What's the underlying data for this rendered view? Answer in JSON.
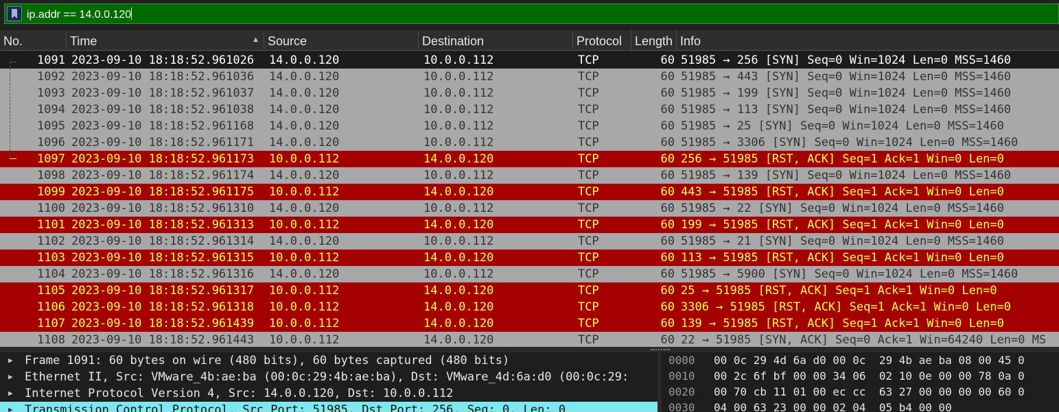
{
  "filter": {
    "text": "ip.addr == 14.0.0.120"
  },
  "columns": {
    "no": "No.",
    "time": "Time",
    "source": "Source",
    "destination": "Destination",
    "protocol": "Protocol",
    "length": "Length",
    "info": "Info"
  },
  "packets": [
    {
      "no": "1091",
      "time": "2023-09-10 18:18:52.961026",
      "src": "14.0.0.120",
      "dst": "10.0.0.112",
      "proto": "TCP",
      "len": "60",
      "info": "51985 → 256 [SYN] Seq=0 Win=1024 Len=0 MSS=1460",
      "kind": "sel"
    },
    {
      "no": "1092",
      "time": "2023-09-10 18:18:52.961036",
      "src": "14.0.0.120",
      "dst": "10.0.0.112",
      "proto": "TCP",
      "len": "60",
      "info": "51985 → 443 [SYN] Seq=0 Win=1024 Len=0 MSS=1460",
      "kind": "syn"
    },
    {
      "no": "1093",
      "time": "2023-09-10 18:18:52.961037",
      "src": "14.0.0.120",
      "dst": "10.0.0.112",
      "proto": "TCP",
      "len": "60",
      "info": "51985 → 199 [SYN] Seq=0 Win=1024 Len=0 MSS=1460",
      "kind": "syn"
    },
    {
      "no": "1094",
      "time": "2023-09-10 18:18:52.961038",
      "src": "14.0.0.120",
      "dst": "10.0.0.112",
      "proto": "TCP",
      "len": "60",
      "info": "51985 → 113 [SYN] Seq=0 Win=1024 Len=0 MSS=1460",
      "kind": "syn"
    },
    {
      "no": "1095",
      "time": "2023-09-10 18:18:52.961168",
      "src": "14.0.0.120",
      "dst": "10.0.0.112",
      "proto": "TCP",
      "len": "60",
      "info": "51985 → 25 [SYN] Seq=0 Win=1024 Len=0 MSS=1460",
      "kind": "syn"
    },
    {
      "no": "1096",
      "time": "2023-09-10 18:18:52.961171",
      "src": "14.0.0.120",
      "dst": "10.0.0.112",
      "proto": "TCP",
      "len": "60",
      "info": "51985 → 3306 [SYN] Seq=0 Win=1024 Len=0 MSS=1460",
      "kind": "syn"
    },
    {
      "no": "1097",
      "time": "2023-09-10 18:18:52.961173",
      "src": "10.0.0.112",
      "dst": "14.0.0.120",
      "proto": "TCP",
      "len": "60",
      "info": "256 → 51985 [RST, ACK] Seq=1 Ack=1 Win=0 Len=0",
      "kind": "rst"
    },
    {
      "no": "1098",
      "time": "2023-09-10 18:18:52.961174",
      "src": "14.0.0.120",
      "dst": "10.0.0.112",
      "proto": "TCP",
      "len": "60",
      "info": "51985 → 139 [SYN] Seq=0 Win=1024 Len=0 MSS=1460",
      "kind": "syn"
    },
    {
      "no": "1099",
      "time": "2023-09-10 18:18:52.961175",
      "src": "10.0.0.112",
      "dst": "14.0.0.120",
      "proto": "TCP",
      "len": "60",
      "info": "443 → 51985 [RST, ACK] Seq=1 Ack=1 Win=0 Len=0",
      "kind": "rst"
    },
    {
      "no": "1100",
      "time": "2023-09-10 18:18:52.961310",
      "src": "14.0.0.120",
      "dst": "10.0.0.112",
      "proto": "TCP",
      "len": "60",
      "info": "51985 → 22 [SYN] Seq=0 Win=1024 Len=0 MSS=1460",
      "kind": "syn"
    },
    {
      "no": "1101",
      "time": "2023-09-10 18:18:52.961313",
      "src": "10.0.0.112",
      "dst": "14.0.0.120",
      "proto": "TCP",
      "len": "60",
      "info": "199 → 51985 [RST, ACK] Seq=1 Ack=1 Win=0 Len=0",
      "kind": "rst"
    },
    {
      "no": "1102",
      "time": "2023-09-10 18:18:52.961314",
      "src": "14.0.0.120",
      "dst": "10.0.0.112",
      "proto": "TCP",
      "len": "60",
      "info": "51985 → 21 [SYN] Seq=0 Win=1024 Len=0 MSS=1460",
      "kind": "syn"
    },
    {
      "no": "1103",
      "time": "2023-09-10 18:18:52.961315",
      "src": "10.0.0.112",
      "dst": "14.0.0.120",
      "proto": "TCP",
      "len": "60",
      "info": "113 → 51985 [RST, ACK] Seq=1 Ack=1 Win=0 Len=0",
      "kind": "rst"
    },
    {
      "no": "1104",
      "time": "2023-09-10 18:18:52.961316",
      "src": "14.0.0.120",
      "dst": "10.0.0.112",
      "proto": "TCP",
      "len": "60",
      "info": "51985 → 5900 [SYN] Seq=0 Win=1024 Len=0 MSS=1460",
      "kind": "syn"
    },
    {
      "no": "1105",
      "time": "2023-09-10 18:18:52.961317",
      "src": "10.0.0.112",
      "dst": "14.0.0.120",
      "proto": "TCP",
      "len": "60",
      "info": "25 → 51985 [RST, ACK] Seq=1 Ack=1 Win=0 Len=0",
      "kind": "rst"
    },
    {
      "no": "1106",
      "time": "2023-09-10 18:18:52.961318",
      "src": "10.0.0.112",
      "dst": "14.0.0.120",
      "proto": "TCP",
      "len": "60",
      "info": "3306 → 51985 [RST, ACK] Seq=1 Ack=1 Win=0 Len=0",
      "kind": "rst"
    },
    {
      "no": "1107",
      "time": "2023-09-10 18:18:52.961439",
      "src": "10.0.0.112",
      "dst": "14.0.0.120",
      "proto": "TCP",
      "len": "60",
      "info": "139 → 51985 [RST, ACK] Seq=1 Ack=1 Win=0 Len=0",
      "kind": "rst"
    },
    {
      "no": "1108",
      "time": "2023-09-10 18:18:52.961443",
      "src": "10.0.0.112",
      "dst": "14.0.0.120",
      "proto": "TCP",
      "len": "60",
      "info": "22 → 51985 [SYN, ACK] Seq=0 Ack=1 Win=64240 Len=0 MS",
      "kind": "syn"
    }
  ],
  "details": [
    {
      "text": "Frame 1091: 60 bytes on wire (480 bits), 60 bytes captured (480 bits)",
      "highlight": false
    },
    {
      "text": "Ethernet II, Src: VMware_4b:ae:ba (00:0c:29:4b:ae:ba), Dst: VMware_4d:6a:d0 (00:0c:29:",
      "highlight": false
    },
    {
      "text": "Internet Protocol Version 4, Src: 14.0.0.120, Dst: 10.0.0.112",
      "highlight": false
    },
    {
      "text": "Transmission Control Protocol, Src Port: 51985, Dst Port: 256, Seq: 0, Len: 0",
      "highlight": true
    }
  ],
  "hex": [
    {
      "offset": "0000",
      "bytes": "00 0c 29 4d 6a d0 00 0c  29 4b ae ba 08 00 45 0"
    },
    {
      "offset": "0010",
      "bytes": "00 2c 6f bf 00 00 34 06  02 10 0e 00 00 78 0a 0"
    },
    {
      "offset": "0020",
      "bytes": "00 70 cb 11 01 00 ec cc  63 27 00 00 00 00 60 0"
    },
    {
      "offset": "0030",
      "bytes": "04 00 63 23 00 00 02 04  05 b4 00 00"
    }
  ],
  "colors": {
    "filter_valid": "#006a00",
    "syn_row": "#a8a8a8",
    "rst_row": "#a40000",
    "rst_text": "#ffff52",
    "selected_row": "#1c1c1c",
    "detail_highlight": "#7fe8ef"
  }
}
